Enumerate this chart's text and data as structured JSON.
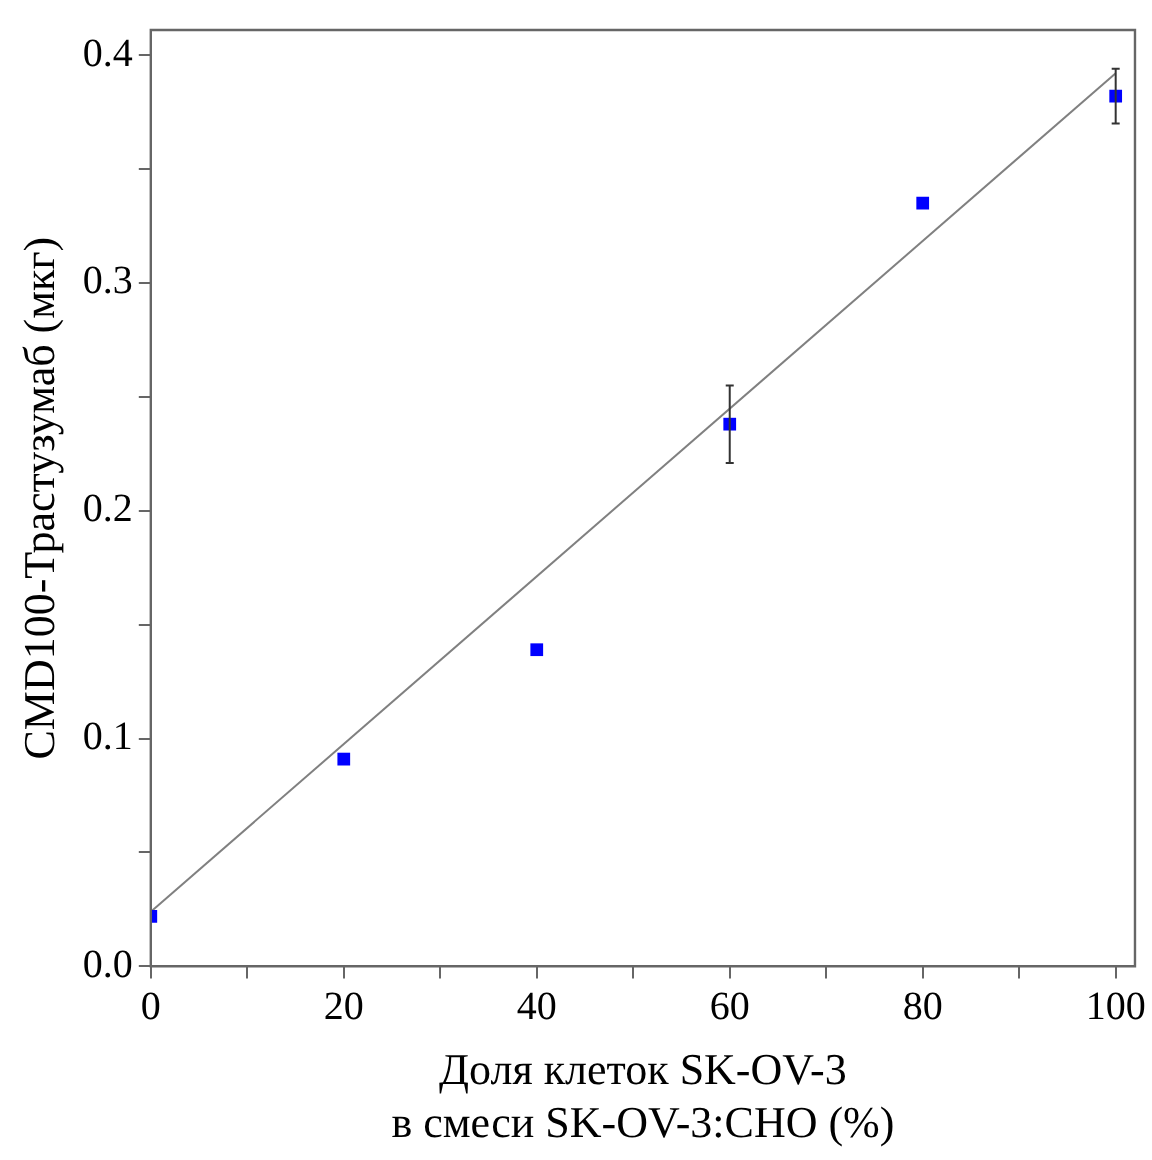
{
  "chart_data": {
    "type": "scatter",
    "xlabel": "Доля клеток SK-OV-3\nв смеси SK-OV-3:CHO (%)",
    "ylabel": "CMD100-Трастузумаб (мкг)",
    "xlim": [
      0,
      102
    ],
    "ylim": [
      0,
      0.411
    ],
    "xticks": [
      0,
      {
        "value": 10,
        "label": null
      },
      20,
      {
        "value": 30,
        "label": null
      },
      40,
      {
        "value": 50,
        "label": null
      },
      60,
      {
        "value": 70,
        "label": null
      },
      80,
      {
        "value": 90,
        "label": null
      },
      100
    ],
    "yticks": [
      {
        "value": 0,
        "label": "0.0"
      },
      {
        "value": 0.05,
        "label": null
      },
      0.1,
      {
        "value": 0.15,
        "label": null
      },
      0.2,
      {
        "value": 0.25,
        "label": null
      },
      0.3,
      {
        "value": 0.35,
        "label": null
      },
      0.4
    ],
    "grid": false,
    "legend": false,
    "series": [
      {
        "type": "scatter",
        "color": "#0000ff",
        "marker": "square",
        "x": [
          0,
          20,
          40,
          60,
          80,
          100
        ],
        "values": [
          0.022,
          0.091,
          0.139,
          0.238,
          0.335,
          0.382
        ],
        "errors": [
          null,
          null,
          null,
          0.017,
          null,
          0.012
        ]
      },
      {
        "type": "line",
        "color": "#808080",
        "marker": "none",
        "line_style": "solid",
        "x": [
          0,
          100
        ],
        "values": [
          0.024,
          0.392
        ]
      }
    ]
  }
}
